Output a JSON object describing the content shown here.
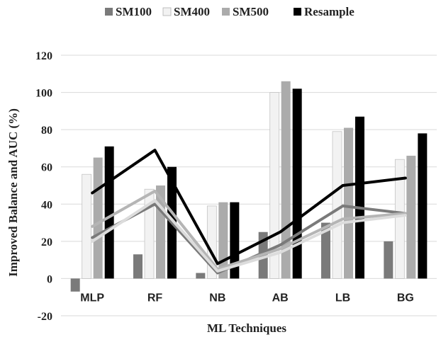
{
  "chart_data": {
    "type": "bar",
    "categories": [
      "MLP",
      "RF",
      "NB",
      "AB",
      "LB",
      "BG"
    ],
    "series": [
      {
        "name": "SM100",
        "color": "#7a7a7a",
        "values": [
          -7,
          13,
          3,
          25,
          30,
          20
        ]
      },
      {
        "name": "SM400",
        "color": "#f2f2f2",
        "values": [
          56,
          48,
          39,
          100,
          79,
          64
        ]
      },
      {
        "name": "SM500",
        "color": "#ababab",
        "values": [
          65,
          50,
          41,
          106,
          81,
          66
        ]
      },
      {
        "name": "Resample",
        "color": "#000000",
        "values": [
          71,
          60,
          41,
          102,
          87,
          78
        ]
      }
    ],
    "lines": [
      {
        "color": "#000000",
        "values": [
          46,
          69,
          8,
          25,
          50,
          54
        ]
      },
      {
        "color": "#7a7a7a",
        "values": [
          22,
          40,
          3,
          18,
          39,
          35
        ]
      },
      {
        "color": "#b5b5b5",
        "values": [
          28,
          47,
          5,
          16,
          32,
          35
        ]
      },
      {
        "color": "#dcdcdc",
        "values": [
          20,
          42,
          4,
          14,
          30,
          34
        ]
      }
    ],
    "xlabel": "ML Techniques",
    "ylabel": "Improved Balance and AUC (%)",
    "ylim": [
      -20,
      120
    ],
    "yticks": [
      -20,
      0,
      20,
      40,
      60,
      80,
      100,
      120
    ],
    "grid": true,
    "legend_position": "top"
  }
}
